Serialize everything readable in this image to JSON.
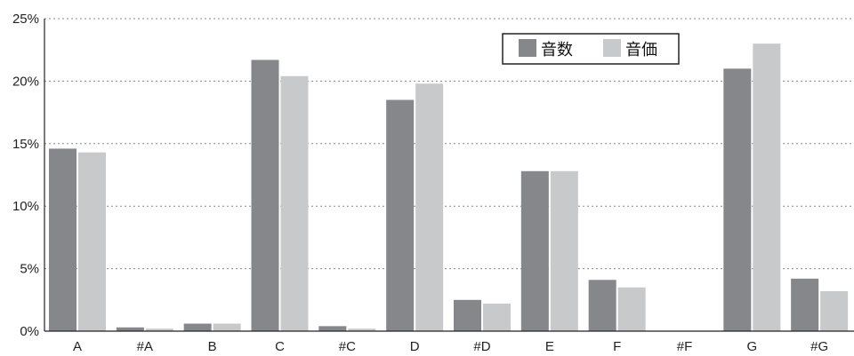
{
  "chart_data": {
    "type": "bar",
    "categories": [
      "A",
      "#A",
      "B",
      "C",
      "#C",
      "D",
      "#D",
      "E",
      "F",
      "#F",
      "G",
      "#G"
    ],
    "series": [
      {
        "name": "音数",
        "color": "#86878b",
        "values": [
          14.6,
          0.3,
          0.6,
          21.7,
          0.4,
          18.5,
          2.5,
          12.8,
          4.1,
          0,
          21.0,
          4.2
        ]
      },
      {
        "name": "音価",
        "color": "#c8c9cb",
        "values": [
          14.3,
          0.2,
          0.6,
          20.4,
          0.2,
          19.8,
          2.2,
          12.8,
          3.5,
          0,
          23.0,
          3.2
        ]
      }
    ],
    "ylim": [
      0,
      25
    ],
    "yticks": [
      0,
      5,
      10,
      15,
      20,
      25
    ],
    "ytick_labels": [
      "0%",
      "5%",
      "10%",
      "15%",
      "20%",
      "25%"
    ],
    "grid": true,
    "legend_position": "top-right"
  }
}
